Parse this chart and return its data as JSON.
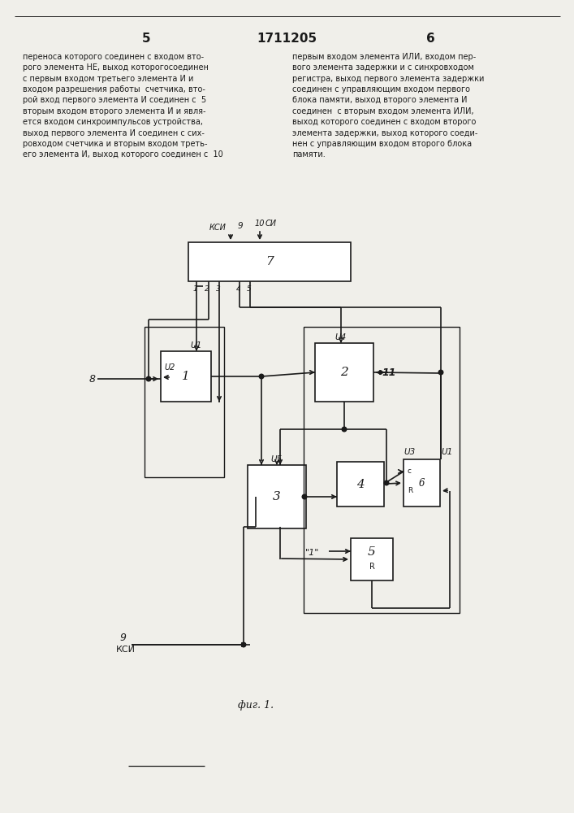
{
  "bg": "#f0efea",
  "ec": "#1a1a1a",
  "fc": "#ffffff",
  "tc": "#1a1a1a",
  "page_num_left": "5",
  "page_num_center": "1711205",
  "page_num_right": "6",
  "text_left": "переноса которого соединен с входом вто-\nрого элемента НЕ, выход которогосоединен\nс первым входом третьего элемента И и\nвходом разрешения работы  счетчика, вто-\nрой вход первого элемента И соединен с  5\nвторым входом второго элемента И и явля-\nется входом синхроимпульсов устройства,\nвыход первого элемента И соединен с сих-\nровходом счетчика и вторым входом треть-\nего элемента И, выход которого соединен с  10",
  "text_right": "первым входом элемента ИЛИ, входом пер-\nвого элемента задержки и с синхровходом\nрегистра, выход первого элемента задержки\nсоединен с управляющим входом первого\nблока памяти, выход второго элемента И\nсоединен  с вторым входом элемента ИЛИ,\nвыход которого соединен с входом второго\nэлемента задержки, выход которого соеди-\nнен с управляющим входом второго блока\nпамяти.",
  "fig_label": "фиг. 1.",
  "kcu_label": "КСИ",
  "ksi9_label": "9",
  "kcu9_label": "КСИ",
  "label_10": "10",
  "label_cu": "СИ",
  "label_kcu": "КСИ",
  "label_9": "9",
  "label_8": "8",
  "label_11": "11",
  "b7_label": "7",
  "b1_label": "1",
  "b2_label": "2",
  "b3_label": "3",
  "b4_label": "4",
  "b5_label": "5",
  "b6_label": "6",
  "u1": "U1",
  "u2": "U2",
  "u3": "U3",
  "u4": "U4",
  "u5": "U5",
  "pin1": "1",
  "pin2": "2",
  "pin3": "3",
  "pin4": "4",
  "pin5": "5",
  "const1": "\"1\"",
  "c_label": "c",
  "r_label": "R"
}
